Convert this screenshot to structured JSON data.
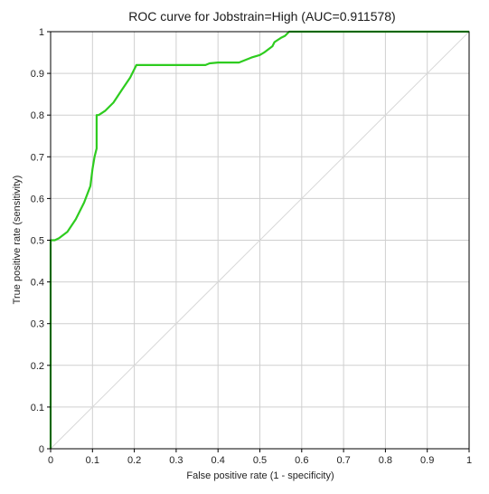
{
  "chart_data": {
    "type": "line",
    "title": "ROC curve for Jobstrain=High (AUC=0.911578)",
    "xlabel": "False positive rate (1 - specificity)",
    "ylabel": "True positive rate (sensitivity)",
    "xlim": [
      0,
      1
    ],
    "ylim": [
      0,
      1
    ],
    "x_ticks": [
      "0",
      "0.1",
      "0.2",
      "0.3",
      "0.4",
      "0.5",
      "0.6",
      "0.7",
      "0.8",
      "0.9",
      "1"
    ],
    "y_ticks": [
      "0",
      "0.1",
      "0.2",
      "0.3",
      "0.4",
      "0.5",
      "0.6",
      "0.7",
      "0.8",
      "0.9",
      "1"
    ],
    "grid": true,
    "legend": "none",
    "series": [
      {
        "color": "#2ecc1f",
        "x": [
          0,
          0,
          0.005,
          0.01,
          0.02,
          0.04,
          0.06,
          0.08,
          0.095,
          0.1,
          0.105,
          0.11,
          0.11,
          0.115,
          0.13,
          0.15,
          0.17,
          0.19,
          0.205,
          0.21,
          0.23,
          0.3,
          0.37,
          0.38,
          0.4,
          0.45,
          0.48,
          0.5,
          0.51,
          0.53,
          0.535,
          0.55,
          0.56,
          0.57,
          0.58,
          0.6,
          1.0
        ],
        "y": [
          0,
          0.5,
          0.5,
          0.5,
          0.505,
          0.52,
          0.55,
          0.59,
          0.63,
          0.67,
          0.7,
          0.72,
          0.8,
          0.8,
          0.81,
          0.83,
          0.86,
          0.89,
          0.92,
          0.92,
          0.92,
          0.92,
          0.92,
          0.924,
          0.926,
          0.926,
          0.938,
          0.944,
          0.95,
          0.965,
          0.975,
          0.985,
          0.99,
          1.0,
          1.0,
          1.0,
          1.0
        ]
      },
      {
        "color": "#d8d8d8",
        "x": [
          0,
          1
        ],
        "y": [
          0,
          1
        ]
      }
    ]
  }
}
